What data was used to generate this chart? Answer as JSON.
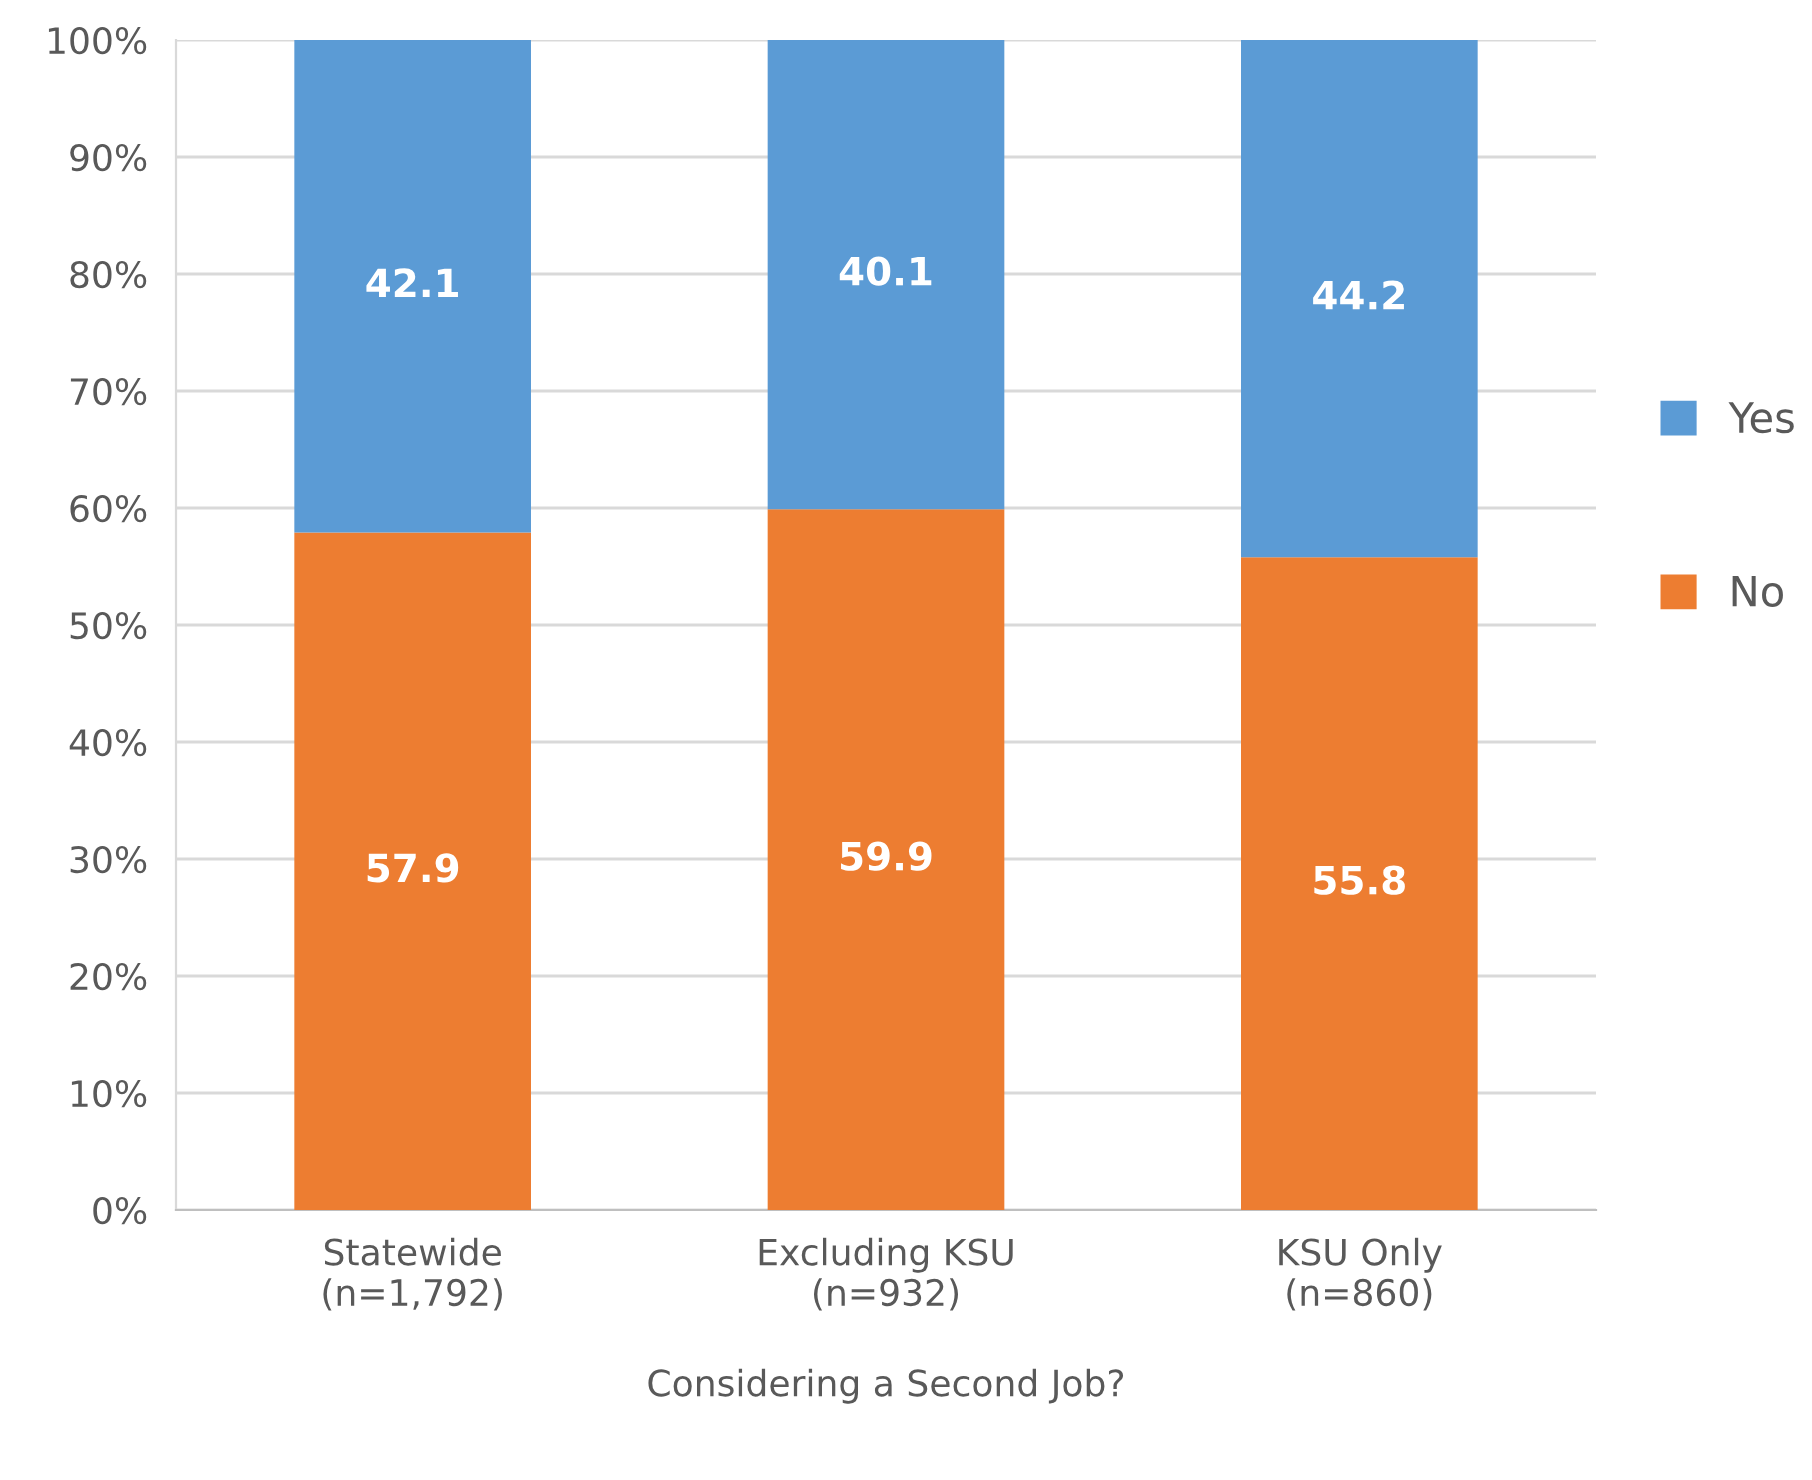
{
  "chart_data": {
    "type": "bar",
    "stacked": true,
    "xlabel": "Considering a Second Job?",
    "categories": [
      "Statewide\n(n=1,792)",
      "Excluding KSU\n(n=932)",
      "KSU Only\n(n=860)"
    ],
    "series": [
      {
        "name": "No",
        "color": "#ed7d31",
        "values": [
          57.9,
          59.9,
          55.8
        ]
      },
      {
        "name": "Yes",
        "color": "#5b9bd5",
        "values": [
          42.1,
          40.1,
          44.2
        ]
      }
    ],
    "ylim": [
      0,
      100
    ],
    "yticks": [
      {
        "value": 0,
        "label": "0%"
      },
      {
        "value": 10,
        "label": "10%"
      },
      {
        "value": 20,
        "label": "20%"
      },
      {
        "value": 30,
        "label": "30%"
      },
      {
        "value": 40,
        "label": "40%"
      },
      {
        "value": 50,
        "label": "50%"
      },
      {
        "value": 60,
        "label": "60%"
      },
      {
        "value": 70,
        "label": "70%"
      },
      {
        "value": 80,
        "label": "80%"
      },
      {
        "value": 90,
        "label": "90%"
      },
      {
        "value": 100,
        "label": "100%"
      }
    ],
    "grid": "y",
    "legend": "right",
    "data_labels": true
  }
}
